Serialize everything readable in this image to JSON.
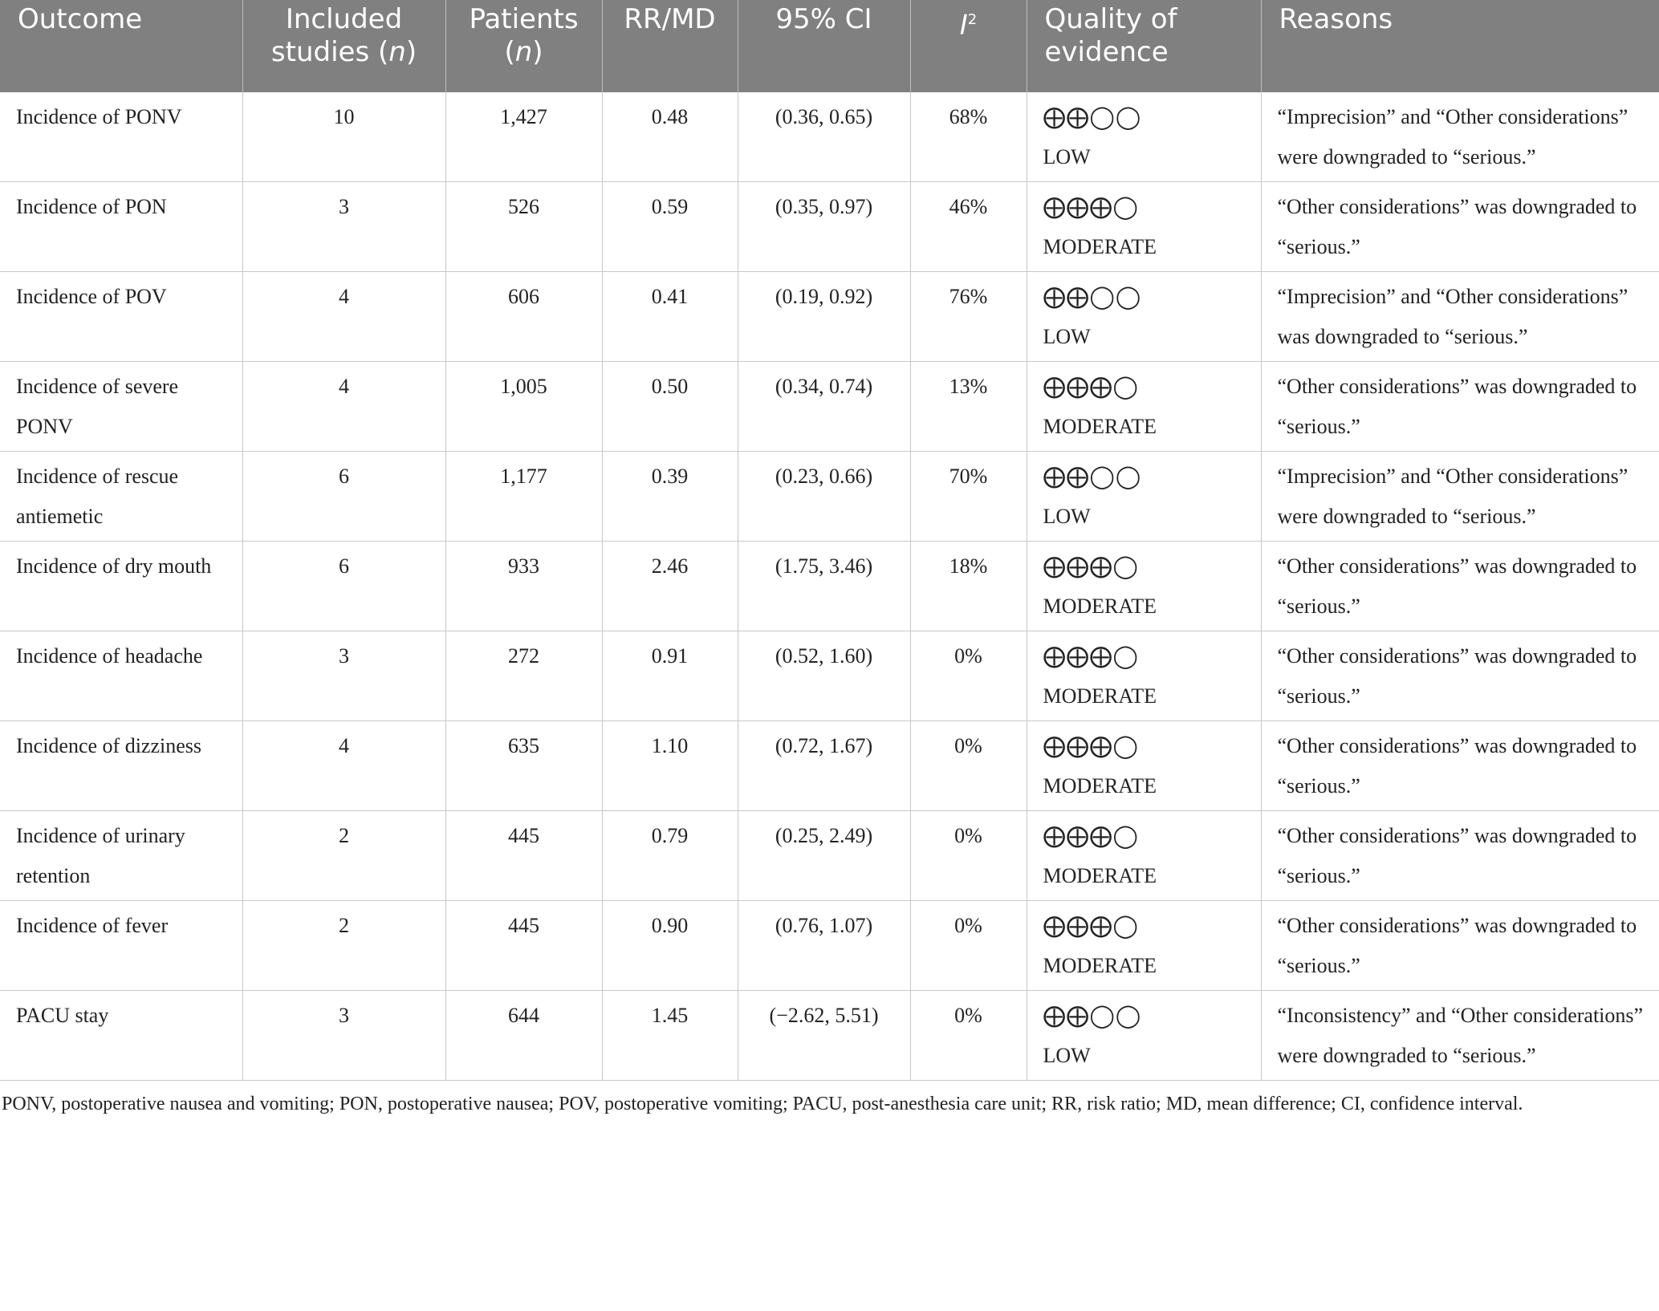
{
  "table": {
    "header": [
      [
        "Outcome"
      ],
      [
        "Included studies (",
        "n",
        ")"
      ],
      [
        "Patients (",
        "n",
        ")"
      ],
      [
        "RR/MD"
      ],
      [
        "95% CI"
      ],
      [
        "I",
        "2"
      ],
      [
        "Quality of evidence"
      ],
      [
        "Reasons"
      ]
    ],
    "rows": [
      [
        "Incidence of PONV",
        "10",
        "1,427",
        "0.48",
        "(0.36, 0.65)",
        "68%",
        {
          "symbols": "⨁⨁◯◯",
          "level": "LOW"
        },
        "“Imprecision” and “Other considerations” were downgraded to “serious.”"
      ],
      [
        "Incidence of PON",
        "3",
        "526",
        "0.59",
        "(0.35, 0.97)",
        "46%",
        {
          "symbols": "⨁⨁⨁◯",
          "level": "MODERATE"
        },
        "“Other considerations” was downgraded to “serious.”"
      ],
      [
        "Incidence of POV",
        "4",
        "606",
        "0.41",
        "(0.19, 0.92)",
        "76%",
        {
          "symbols": "⨁⨁◯◯",
          "level": "LOW"
        },
        "“Imprecision” and “Other considerations” was downgraded to “serious.”"
      ],
      [
        "Incidence of severe PONV",
        "4",
        "1,005",
        "0.50",
        "(0.34, 0.74)",
        "13%",
        {
          "symbols": "⨁⨁⨁◯",
          "level": "MODERATE"
        },
        "“Other considerations” was downgraded to “serious.”"
      ],
      [
        "Incidence of rescue antiemetic",
        "6",
        "1,177",
        "0.39",
        "(0.23, 0.66)",
        "70%",
        {
          "symbols": "⨁⨁◯◯",
          "level": "LOW"
        },
        "“Imprecision” and “Other considerations” were downgraded to “serious.”"
      ],
      [
        "Incidence of dry mouth",
        "6",
        "933",
        "2.46",
        "(1.75, 3.46)",
        "18%",
        {
          "symbols": "⨁⨁⨁◯",
          "level": "MODERATE"
        },
        "“Other considerations” was downgraded to “serious.”"
      ],
      [
        "Incidence of headache",
        "3",
        "272",
        "0.91",
        "(0.52, 1.60)",
        "0%",
        {
          "symbols": "⨁⨁⨁◯",
          "level": "MODERATE"
        },
        "“Other considerations” was downgraded to “serious.”"
      ],
      [
        "Incidence of dizziness",
        "4",
        "635",
        "1.10",
        "(0.72, 1.67)",
        "0%",
        {
          "symbols": "⨁⨁⨁◯",
          "level": "MODERATE"
        },
        "“Other considerations” was downgraded to “serious.”"
      ],
      [
        "Incidence of urinary retention",
        "2",
        "445",
        "0.79",
        "(0.25, 2.49)",
        "0%",
        {
          "symbols": "⨁⨁⨁◯",
          "level": "MODERATE"
        },
        "“Other considerations” was downgraded to “serious.”"
      ],
      [
        "Incidence of fever",
        "2",
        "445",
        "0.90",
        "(0.76, 1.07)",
        "0%",
        {
          "symbols": "⨁⨁⨁◯",
          "level": "MODERATE"
        },
        "“Other considerations” was downgraded to “serious.”"
      ],
      [
        "PACU stay",
        "3",
        "644",
        "1.45",
        "(−2.62, 5.51)",
        "0%",
        {
          "symbols": "⨁⨁◯◯",
          "level": "LOW"
        },
        "“Inconsistency” and “Other considerations” were downgraded to “serious.”"
      ]
    ],
    "footnote": "PONV, postoperative nausea and vomiting; PON, postoperative nausea; POV, postoperative vomiting; PACU, post-anesthesia care unit; RR, risk ratio; MD, mean difference; CI, confidence interval."
  }
}
